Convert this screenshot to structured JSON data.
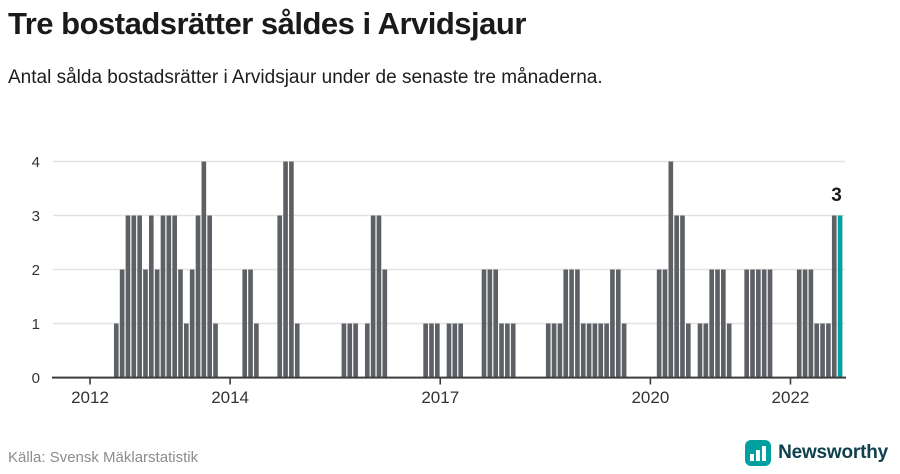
{
  "header": {
    "title": "Tre bostadsrätter såldes i Arvidsjaur",
    "subtitle": "Antal sålda bostadsrätter i Arvidsjaur under de senaste tre månaderna."
  },
  "footer": {
    "source": "Källa: Svensk Mäklarstatistik",
    "brand_name": "Newsworthy"
  },
  "colors": {
    "bar": "#5d6065",
    "highlight": "#00a0a0",
    "grid": "#e3e3e3",
    "axis": "#3d3d3d",
    "tick_text": "#333333",
    "annotation_text": "#1a1a1a"
  },
  "chart_data": {
    "type": "bar",
    "title": "Tre bostadsrätter såldes i Arvidsjaur",
    "subtitle": "Antal sålda bostadsrätter i Arvidsjaur under de senaste tre månaderna.",
    "ylabel": "",
    "xlabel": "",
    "ylim": [
      0,
      4
    ],
    "grid": "horizontal",
    "start_month": "2011-07",
    "end_month": "2022-09",
    "highlight_last": true,
    "last_value_label": "3",
    "yticks": [
      0,
      1,
      2,
      3,
      4
    ],
    "xticks": [
      {
        "label": "2012",
        "month_index": 6
      },
      {
        "label": "2014",
        "month_index": 30
      },
      {
        "label": "2017",
        "month_index": 66
      },
      {
        "label": "2020",
        "month_index": 102
      },
      {
        "label": "2022",
        "month_index": 126
      }
    ],
    "values": [
      0,
      0,
      0,
      0,
      0,
      0,
      0,
      0,
      0,
      0,
      1,
      2,
      3,
      3,
      3,
      2,
      3,
      2,
      3,
      3,
      3,
      2,
      1,
      2,
      3,
      4,
      3,
      1,
      0,
      0,
      0,
      0,
      2,
      2,
      1,
      0,
      0,
      0,
      3,
      4,
      4,
      1,
      0,
      0,
      0,
      0,
      0,
      0,
      0,
      1,
      1,
      1,
      0,
      1,
      3,
      3,
      2,
      0,
      0,
      0,
      0,
      0,
      0,
      1,
      1,
      1,
      0,
      1,
      1,
      1,
      0,
      0,
      0,
      2,
      2,
      2,
      1,
      1,
      1,
      0,
      0,
      0,
      0,
      0,
      1,
      1,
      1,
      2,
      2,
      2,
      1,
      1,
      1,
      1,
      1,
      2,
      2,
      1,
      0,
      0,
      0,
      0,
      0,
      2,
      2,
      4,
      3,
      3,
      1,
      0,
      1,
      1,
      2,
      2,
      2,
      1,
      0,
      0,
      2,
      2,
      2,
      2,
      2,
      0,
      0,
      0,
      0,
      2,
      2,
      2,
      1,
      1,
      1,
      3,
      3
    ]
  }
}
